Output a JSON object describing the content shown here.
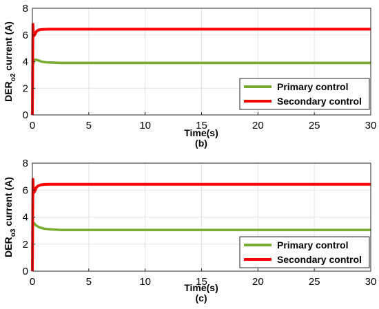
{
  "chart_data": [
    {
      "type": "line",
      "panel_label": "(b)",
      "xlabel": "Time(s)",
      "ylabel_main": "DER",
      "ylabel_sub": "o2",
      "ylabel_tail": " current (A)",
      "xlim": [
        0,
        30
      ],
      "ylim": [
        0,
        8
      ],
      "xticks": [
        0,
        5,
        10,
        15,
        20,
        25,
        30
      ],
      "yticks": [
        0,
        2,
        4,
        6,
        8
      ],
      "grid": true,
      "legend_position": "bottom-right",
      "series": [
        {
          "name": "Primary control",
          "color": "#77ac30",
          "x": [
            0,
            0.05,
            0.15,
            0.3,
            0.5,
            0.8,
            1.2,
            1.8,
            2.5,
            4,
            10,
            20,
            30
          ],
          "y": [
            0,
            3.8,
            4.1,
            4.15,
            4.1,
            4.0,
            3.95,
            3.92,
            3.9,
            3.9,
            3.9,
            3.9,
            3.9
          ]
        },
        {
          "name": "Secondary control",
          "color": "#ff0000",
          "x": [
            0,
            0.05,
            0.1,
            0.2,
            0.35,
            0.5,
            0.7,
            1.0,
            1.5,
            3,
            10,
            20,
            30
          ],
          "y": [
            0,
            6.8,
            5.9,
            6.0,
            6.25,
            6.35,
            6.4,
            6.42,
            6.43,
            6.43,
            6.43,
            6.43,
            6.43
          ]
        }
      ]
    },
    {
      "type": "line",
      "panel_label": "(c)",
      "xlabel": "Time(s)",
      "ylabel_main": "DER",
      "ylabel_sub": "o3",
      "ylabel_tail": " current (A)",
      "xlim": [
        0,
        30
      ],
      "ylim": [
        0,
        8
      ],
      "xticks": [
        0,
        5,
        10,
        15,
        20,
        25,
        30
      ],
      "yticks": [
        0,
        2,
        4,
        6,
        8
      ],
      "grid": true,
      "legend_position": "bottom-right",
      "series": [
        {
          "name": "Primary control",
          "color": "#77ac30",
          "x": [
            0,
            0.05,
            0.15,
            0.3,
            0.6,
            1.0,
            1.5,
            2.5,
            4,
            10,
            20,
            30
          ],
          "y": [
            0,
            3.6,
            3.55,
            3.4,
            3.25,
            3.15,
            3.1,
            3.05,
            3.05,
            3.05,
            3.05,
            3.05
          ]
        },
        {
          "name": "Secondary control",
          "color": "#ff0000",
          "x": [
            0,
            0.05,
            0.1,
            0.2,
            0.35,
            0.5,
            0.7,
            1.0,
            1.5,
            3,
            10,
            20,
            30
          ],
          "y": [
            0,
            6.8,
            5.8,
            5.9,
            6.2,
            6.3,
            6.38,
            6.42,
            6.43,
            6.43,
            6.43,
            6.43,
            6.43
          ]
        }
      ]
    }
  ]
}
